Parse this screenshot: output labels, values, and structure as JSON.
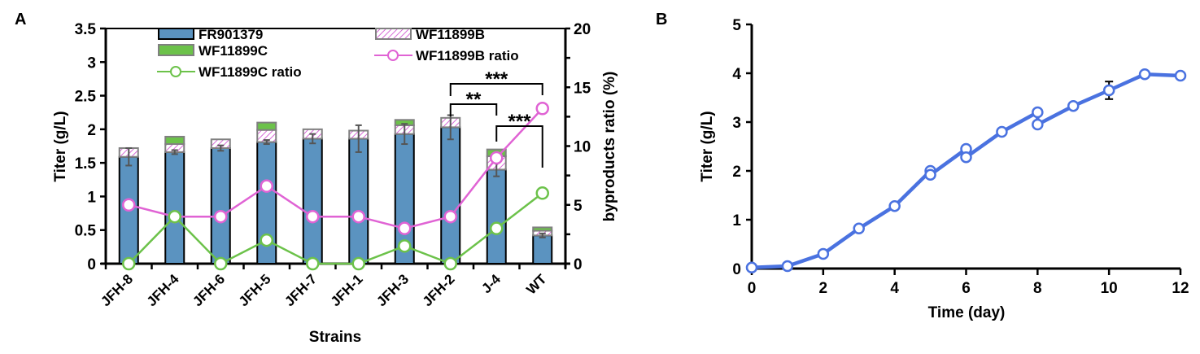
{
  "chart_data": [
    {
      "panel_label": "A",
      "type": "bar",
      "subtype": "stacked bar with dual-axis line overlay",
      "xlabel": "Strains",
      "ylabel": "Titer (g/L)",
      "y2label": "byproducts ratio (%)",
      "ylim": [
        0,
        3.5
      ],
      "y2lim": [
        0,
        20
      ],
      "yticks": [
        "0",
        "0.5",
        "1",
        "1.5",
        "2",
        "2.5",
        "3",
        "3.5"
      ],
      "y2ticks": [
        "0",
        "5",
        "10",
        "15",
        "20"
      ],
      "categories": [
        "JFH-8",
        "JFH-4",
        "JFH-6",
        "JFH-5",
        "JFH-7",
        "JFH-1",
        "JFH-3",
        "JFH-2",
        "J-4",
        "WT"
      ],
      "legend": [
        "FR901379",
        "WF11899B",
        "WF11899C",
        "WF11899B ratio",
        "WF11899C ratio"
      ],
      "legend_position": "top",
      "series": [
        {
          "name": "FR901379",
          "kind": "bar",
          "color": "#5b93c0",
          "values": [
            1.59,
            1.66,
            1.72,
            1.81,
            1.86,
            1.86,
            1.93,
            2.03,
            1.4,
            0.42
          ],
          "error": [
            0.13,
            0.03,
            0.04,
            0.03,
            0.07,
            0.2,
            0.15,
            0.18,
            0.1,
            0.03
          ]
        },
        {
          "name": "WF11899B",
          "kind": "bar",
          "color": "#d66ad6",
          "values": [
            0.13,
            0.12,
            0.13,
            0.18,
            0.14,
            0.12,
            0.13,
            0.14,
            0.2,
            0.07
          ]
        },
        {
          "name": "WF11899C",
          "kind": "bar",
          "color": "#6cc24a",
          "values": [
            0.0,
            0.11,
            0.0,
            0.11,
            0.0,
            0.0,
            0.08,
            0.0,
            0.1,
            0.05
          ]
        },
        {
          "name": "WF11899B ratio",
          "kind": "line",
          "axis": "right",
          "color": "#e063d4",
          "values": [
            5,
            4,
            4,
            6.6,
            4,
            4,
            3,
            4,
            9,
            13.2
          ]
        },
        {
          "name": "WF11899C ratio",
          "kind": "line",
          "axis": "right",
          "color": "#6cc24a",
          "values": [
            0,
            4,
            0,
            2,
            0,
            0,
            1.5,
            0,
            3,
            6
          ]
        }
      ],
      "annotations": [
        {
          "text": "***",
          "from": "JFH-2",
          "to": "WT"
        },
        {
          "text": "**",
          "from": "JFH-2",
          "to": "J-4"
        },
        {
          "text": "***",
          "from": "J-4",
          "to": "WT"
        }
      ]
    },
    {
      "panel_label": "B",
      "type": "line",
      "xlabel": "Time (day)",
      "ylabel": "Titer (g/L)",
      "xlim": [
        0,
        12
      ],
      "ylim": [
        0,
        5
      ],
      "xticks": [
        "0",
        "2",
        "4",
        "6",
        "8",
        "10",
        "12"
      ],
      "yticks": [
        "0",
        "1",
        "2",
        "3",
        "4",
        "5"
      ],
      "series": [
        {
          "name": "Titer",
          "color": "#4a72e0",
          "x": [
            0,
            1,
            2,
            3,
            4,
            5,
            5,
            6,
            6,
            7,
            8,
            8,
            9,
            10,
            11,
            12
          ],
          "y": [
            0.02,
            0.05,
            0.3,
            0.82,
            1.28,
            2.0,
            1.92,
            2.45,
            2.28,
            2.8,
            3.2,
            2.95,
            3.33,
            3.65,
            3.98,
            3.95
          ],
          "error_at": {
            "x": 10,
            "err": 0.18
          }
        }
      ]
    }
  ]
}
